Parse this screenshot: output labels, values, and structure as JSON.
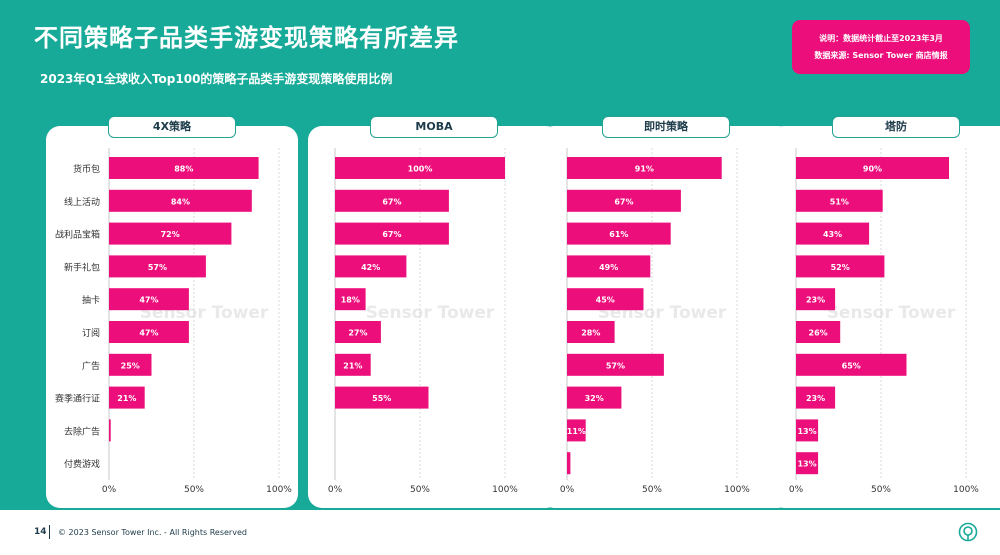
{
  "header": {
    "title": "不同策略子品类手游变现策略有所差异",
    "subtitle": "2023年Q1全球收入Top100的策略子品类手游变现策略使用比例"
  },
  "note": {
    "line1": "说明：数据统计截止至2023年3月",
    "line2": "数据来源: Sensor Tower 商店情报"
  },
  "watermark": "Sensor Tower",
  "footer": {
    "page": "14",
    "copyright": "© 2023 Sensor Tower Inc. - All Rights Reserved"
  },
  "colors": {
    "background": "#17aa98",
    "bar": "#ec0f7b",
    "accent": "#22a393",
    "text_dark": "#1d3b4a"
  },
  "chart_data": [
    {
      "type": "bar",
      "orientation": "horizontal",
      "title": "4X策略",
      "categories": [
        "货币包",
        "线上活动",
        "战利品宝箱",
        "新手礼包",
        "抽卡",
        "订阅",
        "广告",
        "赛季通行证",
        "去除广告",
        "付费游戏"
      ],
      "values": [
        88,
        84,
        72,
        57,
        47,
        47,
        25,
        21,
        1,
        0
      ],
      "data_labels": [
        "88%",
        "84%",
        "72%",
        "57%",
        "47%",
        "47%",
        "25%",
        "21%",
        "",
        ""
      ],
      "xlim": [
        0,
        100
      ],
      "ticks": [
        "0%",
        "50%",
        "100%"
      ],
      "grid": true
    },
    {
      "type": "bar",
      "orientation": "horizontal",
      "title": "MOBA",
      "categories": [
        "货币包",
        "线上活动",
        "战利品宝箱",
        "新手礼包",
        "抽卡",
        "订阅",
        "广告",
        "赛季通行证",
        "去除广告",
        "付费游戏"
      ],
      "values": [
        100,
        67,
        67,
        42,
        18,
        27,
        21,
        55,
        0,
        0
      ],
      "data_labels": [
        "100%",
        "67%",
        "67%",
        "42%",
        "18%",
        "27%",
        "21%",
        "55%",
        "",
        ""
      ],
      "xlim": [
        0,
        100
      ],
      "ticks": [
        "0%",
        "50%",
        "100%"
      ],
      "grid": true
    },
    {
      "type": "bar",
      "orientation": "horizontal",
      "title": "即时策略",
      "categories": [
        "货币包",
        "线上活动",
        "战利品宝箱",
        "新手礼包",
        "抽卡",
        "订阅",
        "广告",
        "赛季通行证",
        "去除广告",
        "付费游戏"
      ],
      "values": [
        91,
        67,
        61,
        49,
        45,
        28,
        57,
        32,
        11,
        2
      ],
      "data_labels": [
        "91%",
        "67%",
        "61%",
        "49%",
        "45%",
        "28%",
        "57%",
        "32%",
        "11%",
        ""
      ],
      "xlim": [
        0,
        100
      ],
      "ticks": [
        "0%",
        "50%",
        "100%"
      ],
      "grid": true
    },
    {
      "type": "bar",
      "orientation": "horizontal",
      "title": "塔防",
      "categories": [
        "货币包",
        "线上活动",
        "战利品宝箱",
        "新手礼包",
        "抽卡",
        "订阅",
        "广告",
        "赛季通行证",
        "去除广告",
        "付费游戏"
      ],
      "values": [
        90,
        51,
        43,
        52,
        23,
        26,
        65,
        23,
        13,
        13
      ],
      "data_labels": [
        "90%",
        "51%",
        "43%",
        "52%",
        "23%",
        "26%",
        "65%",
        "23%",
        "13%",
        "13%"
      ],
      "xlim": [
        0,
        100
      ],
      "ticks": [
        "0%",
        "50%",
        "100%"
      ],
      "grid": true
    }
  ]
}
